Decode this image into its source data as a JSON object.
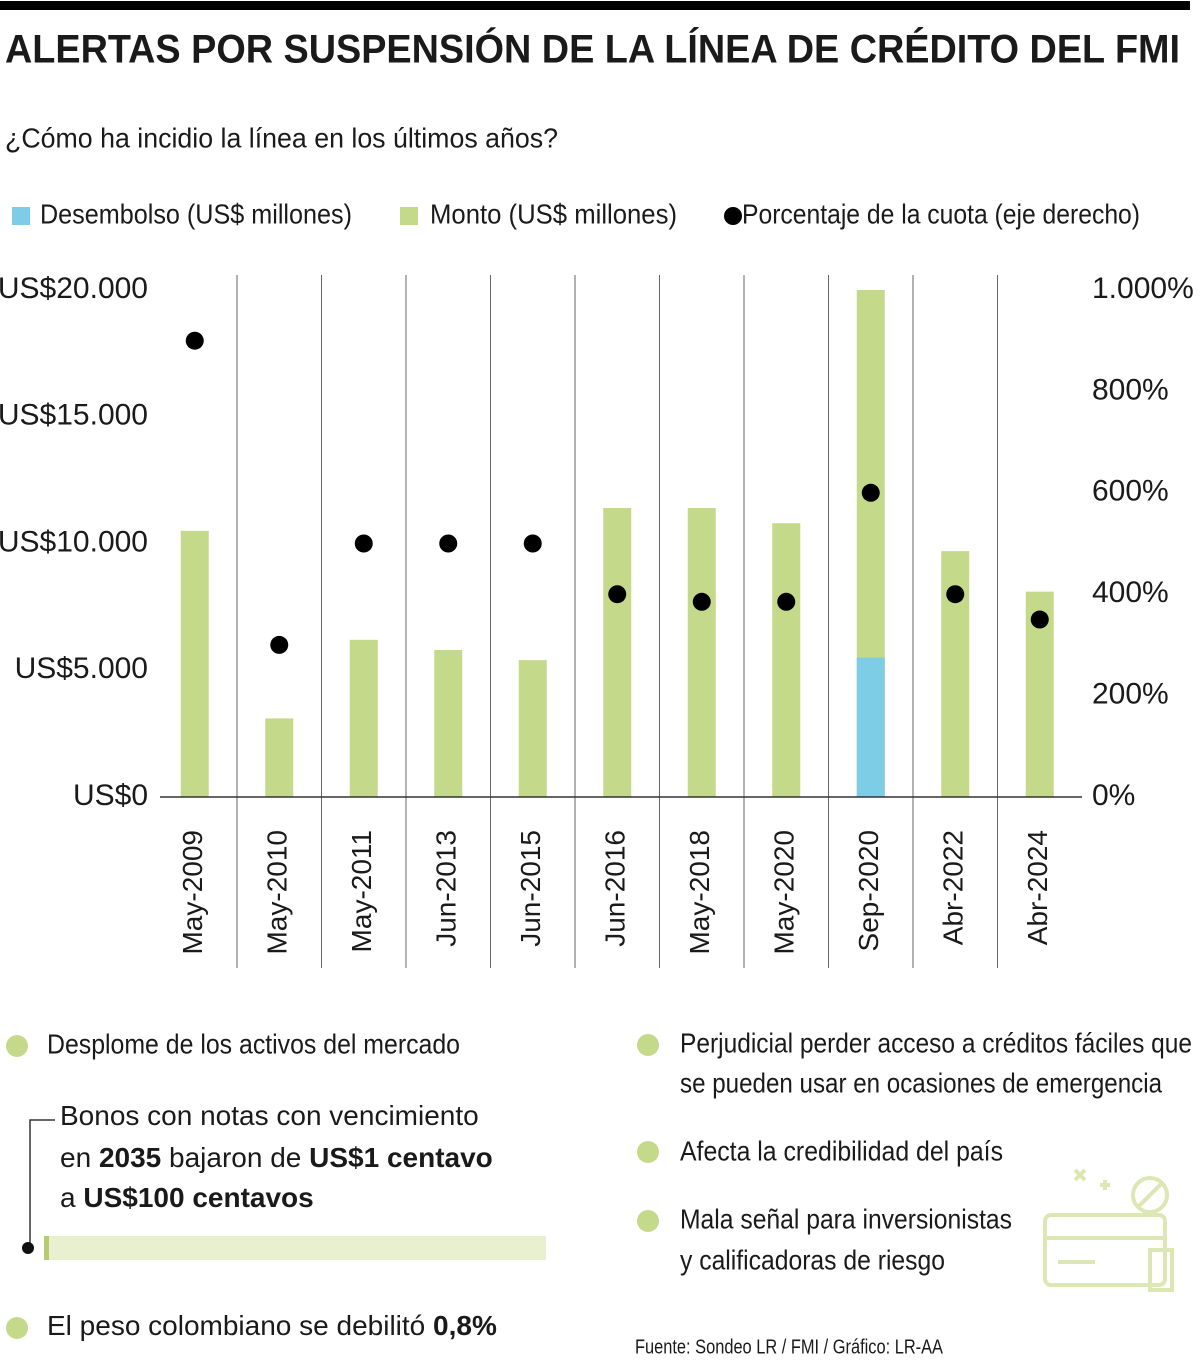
{
  "chart_data": {
    "type": "bar",
    "title": "ALERTAS POR SUSPENSIÓN DE LA LÍNEA DE CRÉDITO DEL FMI",
    "subtitle": "¿Cómo ha incidio la línea en los últimos años?",
    "categories": [
      "May-2009",
      "May-2010",
      "May-2011",
      "Jun-2013",
      "Jun-2015",
      "Jun-2016",
      "May-2018",
      "May-2020",
      "Sep-2020",
      "Abr-2022",
      "Abr-2024"
    ],
    "series": [
      {
        "name": "Desembolso (US$ millones)",
        "color": "#7ecde6",
        "type": "bar",
        "values": [
          null,
          null,
          null,
          null,
          null,
          null,
          null,
          null,
          5500,
          null,
          null
        ]
      },
      {
        "name": "Monto (US$ millones)",
        "color": "#c5d98b",
        "type": "bar",
        "values": [
          10500,
          3100,
          6200,
          5800,
          5400,
          11400,
          11400,
          10800,
          20000,
          9700,
          8100
        ]
      },
      {
        "name": "Porcentaje de la cuota (eje derecho)",
        "color": "#000000",
        "type": "scatter",
        "axis": "y2",
        "values": [
          900,
          300,
          500,
          500,
          500,
          400,
          385,
          385,
          600,
          400,
          350
        ]
      }
    ],
    "ylim": [
      0,
      20000
    ],
    "yticks": [
      {
        "value": 0,
        "label": "US$0"
      },
      {
        "value": 5000,
        "label": "US$5.000"
      },
      {
        "value": 10000,
        "label": "US$10.000"
      },
      {
        "value": 15000,
        "label": "US$15.000"
      },
      {
        "value": 20000,
        "label": "US$20.000"
      }
    ],
    "y2lim": [
      0,
      1000
    ],
    "y2ticks": [
      {
        "value": 0,
        "label": "0%"
      },
      {
        "value": 200,
        "label": "200%"
      },
      {
        "value": 400,
        "label": "400%"
      },
      {
        "value": 600,
        "label": "600%"
      },
      {
        "value": 800,
        "label": "800%"
      },
      {
        "value": 1000,
        "label": "1.000%"
      }
    ],
    "grid": false
  },
  "notes": {
    "left": [
      "Desplome de los activos del mercado",
      "El peso colombiano se debilitó",
      "0,8%"
    ],
    "callout": [
      [
        "Bonos con notas con vencimiento"
      ],
      [
        "en",
        "2035",
        "bajaron de",
        "US$1 centavo"
      ],
      [
        "a",
        "US$100 centavos"
      ]
    ],
    "right": [
      [
        "Perjudicial perder acceso a créditos fáciles que",
        "se pueden usar en ocasiones de emergencia"
      ],
      [
        "Afecta la credibilidad del país"
      ],
      [
        "Mala señal para inversionistas",
        "y calificadoras de riesgo"
      ]
    ]
  },
  "source": "Fuente: Sondeo LR / FMI / Gráfico: LR-AA"
}
